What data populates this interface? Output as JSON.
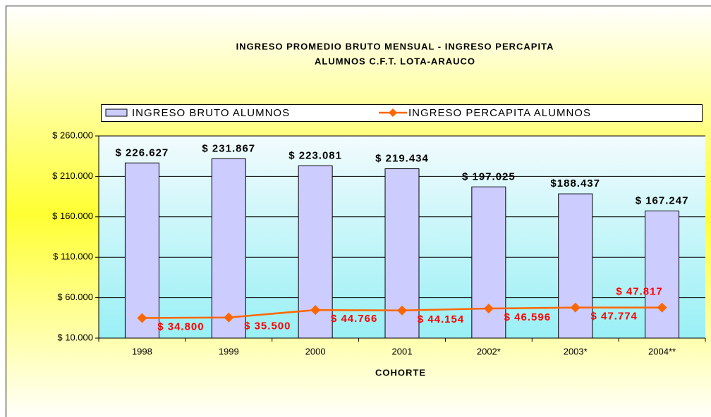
{
  "chart_data": {
    "type": "combo",
    "title": "INGRESO PROMEDIO BRUTO MENSUAL -  INGRESO PERCAPITA",
    "subtitle": "ALUMNOS C.F.T. LOTA-ARAUCO",
    "x_label": "COHORTE",
    "categories": [
      "1998",
      "1999",
      "2000",
      "2001",
      "2002*",
      "2003*",
      "2004**"
    ],
    "series": [
      {
        "name": "INGRESO BRUTO ALUMNOS",
        "type": "bar",
        "color": "#ccccff",
        "values": [
          226627,
          231867,
          223081,
          219434,
          197025,
          188437,
          167247
        ],
        "value_labels": [
          "$ 226.627",
          "$ 231.867",
          "$ 223.081",
          "$ 219.434",
          "$ 197.025",
          "$188.437",
          "$ 167.247"
        ]
      },
      {
        "name": "INGRESO PERCAPITA ALUMNOS",
        "type": "line",
        "color": "#ff6600",
        "label_color": "#ff0000",
        "values": [
          34800,
          35500,
          44766,
          44154,
          46596,
          47774,
          47817
        ],
        "value_labels": [
          "$ 34.800",
          "$ 35.500",
          "$ 44.766",
          "$ 44.154",
          "$ 46.596",
          "$ 47.774",
          "$ 47.817"
        ]
      }
    ],
    "ylim": [
      10000,
      260000
    ],
    "yticks": [
      {
        "value": 10000,
        "label": "$ 10.000"
      },
      {
        "value": 60000,
        "label": "$ 60.000"
      },
      {
        "value": 110000,
        "label": "$ 110.000"
      },
      {
        "value": 160000,
        "label": "$ 160.000"
      },
      {
        "value": 210000,
        "label": "$ 210.000"
      },
      {
        "value": 260000,
        "label": "$ 260.000"
      }
    ],
    "grid": true,
    "legend": "top"
  }
}
